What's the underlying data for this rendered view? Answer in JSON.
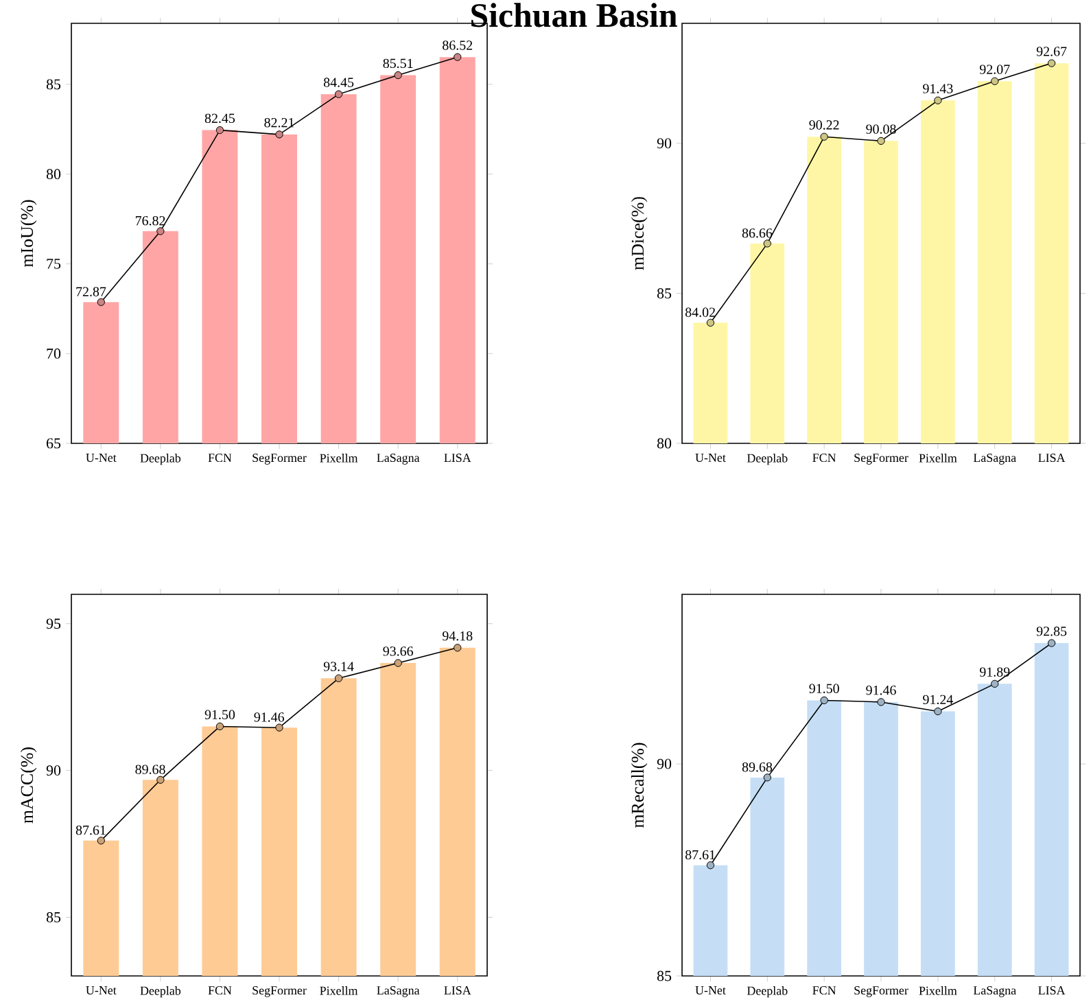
{
  "chart_data": [
    {
      "type": "bar",
      "title": "Sichuan Basin",
      "ylabel": "mIoU(%)",
      "categories": [
        "U-Net",
        "Deeplab",
        "FCN",
        "SegFormer",
        "Pixellm",
        "LaSagna",
        "LISA"
      ],
      "ylim": [
        65,
        88.4
      ],
      "yticks": [
        65,
        70,
        75,
        80,
        85
      ],
      "series": [
        {
          "type": "bar",
          "color": "#ffa5a5",
          "values": [
            72.87,
            76.82,
            82.45,
            82.21,
            84.45,
            85.51,
            86.52
          ]
        },
        {
          "type": "line",
          "color": "#000000",
          "marker": "circle",
          "line_style": "solid",
          "values": [
            72.87,
            76.82,
            82.45,
            82.21,
            84.45,
            85.51,
            86.52
          ],
          "value_labels": [
            "72.87",
            "76.82",
            "82.45",
            "82.21",
            "84.45",
            "85.51",
            "86.52"
          ]
        }
      ]
    },
    {
      "type": "bar",
      "ylabel": "mDice(%)",
      "categories": [
        "U-Net",
        "Deeplab",
        "FCN",
        "SegFormer",
        "Pixellm",
        "LaSagna",
        "LISA"
      ],
      "ylim": [
        80,
        94
      ],
      "yticks": [
        80,
        85,
        90
      ],
      "series": [
        {
          "type": "bar",
          "color": "#fff6a5",
          "values": [
            84.02,
            86.66,
            90.22,
            90.08,
            91.43,
            92.07,
            92.67
          ]
        },
        {
          "type": "line",
          "color": "#000000",
          "marker": "circle",
          "line_style": "solid",
          "values": [
            84.02,
            86.66,
            90.22,
            90.08,
            91.43,
            92.07,
            92.67
          ],
          "value_labels": [
            "84.02",
            "86.66",
            "90.22",
            "90.08",
            "91.43",
            "92.07",
            "92.67"
          ]
        }
      ]
    },
    {
      "type": "bar",
      "ylabel": "mACC(%)",
      "categories": [
        "U-Net",
        "Deeplab",
        "FCN",
        "SegFormer",
        "Pixellm",
        "LaSagna",
        "LISA"
      ],
      "ylim": [
        83,
        96
      ],
      "yticks": [
        85,
        90,
        95
      ],
      "series": [
        {
          "type": "bar",
          "color": "#fecb95",
          "values": [
            87.61,
            89.68,
            91.5,
            91.46,
            93.14,
            93.66,
            94.18
          ]
        },
        {
          "type": "line",
          "color": "#000000",
          "marker": "circle",
          "line_style": "solid",
          "values": [
            87.61,
            89.68,
            91.5,
            91.46,
            93.14,
            93.66,
            94.18
          ],
          "value_labels": [
            "87.61",
            "89.68",
            "91.50",
            "91.46",
            "93.14",
            "93.66",
            "94.18"
          ]
        }
      ]
    },
    {
      "type": "bar",
      "ylabel": "mRecall(%)",
      "categories": [
        "U-Net",
        "Deeplab",
        "FCN",
        "SegFormer",
        "Pixellm",
        "LaSagna",
        "LISA"
      ],
      "ylim": [
        85,
        94
      ],
      "yticks": [
        85,
        90
      ],
      "series": [
        {
          "type": "bar",
          "color": "#c5def5",
          "values": [
            87.61,
            89.68,
            91.5,
            91.46,
            91.24,
            91.89,
            92.85
          ]
        },
        {
          "type": "line",
          "color": "#000000",
          "marker": "circle",
          "line_style": "solid",
          "values": [
            87.61,
            89.68,
            91.5,
            91.46,
            91.24,
            91.89,
            92.85
          ],
          "value_labels": [
            "87.61",
            "89.68",
            "91.50",
            "91.46",
            "91.24",
            "91.89",
            "92.85"
          ]
        }
      ]
    }
  ]
}
